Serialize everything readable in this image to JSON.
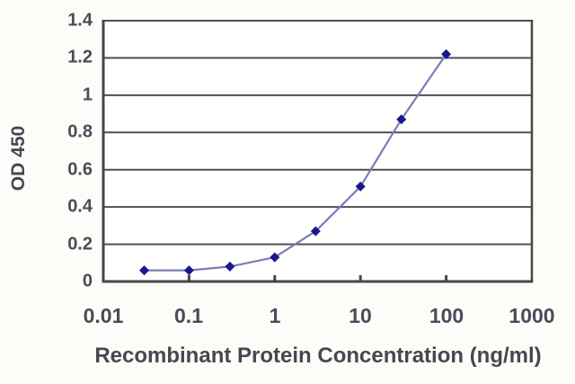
{
  "figure": {
    "type": "elisa-standard-curve-chart",
    "background": "#fdfcf9"
  },
  "chart_data": {
    "type": "line",
    "title": "",
    "xlabel": "Recombinant Protein Concentration (ng/ml)",
    "ylabel": "OD 450",
    "x_scale": "log",
    "y_scale": "linear",
    "xlim": [
      0.01,
      1000
    ],
    "ylim": [
      0,
      1.4
    ],
    "x_ticks": [
      0.01,
      0.1,
      1,
      10,
      100,
      1000
    ],
    "x_tick_labels": [
      "0.01",
      "0.1",
      "1",
      "10",
      "100",
      "1000"
    ],
    "y_ticks": [
      0,
      0.2,
      0.4,
      0.6,
      0.8,
      1,
      1.2,
      1.4
    ],
    "y_tick_labels": [
      "0",
      "0.2",
      "0.4",
      "0.6",
      "0.8",
      "1",
      "1.2",
      "1.4"
    ],
    "grid": "horizontal",
    "legend": "none",
    "series": [
      {
        "name": "OD 450",
        "marker": "diamond",
        "line_color": "#7b7bbd",
        "marker_color": "#18188e",
        "points": [
          [
            0.03,
            0.06
          ],
          [
            0.1,
            0.06
          ],
          [
            0.3,
            0.08
          ],
          [
            1,
            0.13
          ],
          [
            3,
            0.27
          ],
          [
            10,
            0.51
          ],
          [
            30,
            0.87
          ],
          [
            100,
            1.22
          ]
        ]
      }
    ]
  },
  "colors": {
    "grid": "#4f4f4f",
    "axis": "#474747",
    "tick_text": "#4f4959",
    "title_text": "#4b4550",
    "plot_background": "#fffffe"
  }
}
